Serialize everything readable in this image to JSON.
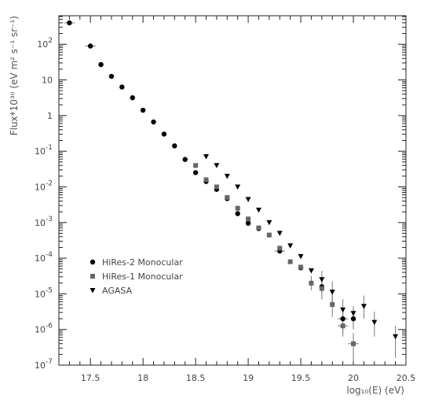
{
  "chart_data": {
    "type": "scatter",
    "title": "",
    "xlabel": "log₁₀(E)  (eV)",
    "ylabel": "Flux*10³⁰ (eV m² s⁻¹ sr⁻¹)",
    "xlim": [
      17.2,
      20.5
    ],
    "ylim_log10": [
      -7,
      2.8
    ],
    "y_scale": "log",
    "grid": false,
    "legend_position": "lower-left",
    "x_ticks": [
      17.5,
      18,
      18.5,
      19,
      19.5,
      20,
      20.5
    ],
    "x_tick_labels": [
      "17.5",
      "18",
      "18.5",
      "19",
      "19.5",
      "20",
      "20.5"
    ],
    "y_tick_exponents": [
      -7,
      -6,
      -5,
      -4,
      -3,
      -2,
      -1,
      0,
      1,
      2
    ],
    "y_tick_labels": [
      {
        "base": "10",
        "exp": "-7"
      },
      {
        "base": "10",
        "exp": "-6"
      },
      {
        "base": "10",
        "exp": "-5"
      },
      {
        "base": "10",
        "exp": "-4"
      },
      {
        "base": "10",
        "exp": "-3"
      },
      {
        "base": "10",
        "exp": "-2"
      },
      {
        "base": "10",
        "exp": "-1"
      },
      {
        "base": "1",
        "exp": ""
      },
      {
        "base": "10",
        "exp": ""
      },
      {
        "base": "10",
        "exp": "2"
      }
    ],
    "series": [
      {
        "name": "HiRes-2 Monocular",
        "marker": "circle",
        "color": "#000000",
        "points": [
          {
            "x": 17.3,
            "y": 2.6,
            "xerr": 0.05
          },
          {
            "x": 17.5,
            "y": 1.95,
            "xerr": 0.05
          },
          {
            "x": 17.6,
            "y": 1.43
          },
          {
            "x": 17.7,
            "y": 1.1
          },
          {
            "x": 17.8,
            "y": 0.8
          },
          {
            "x": 17.9,
            "y": 0.5
          },
          {
            "x": 18.0,
            "y": 0.15
          },
          {
            "x": 18.1,
            "y": -0.18
          },
          {
            "x": 18.2,
            "y": -0.52
          },
          {
            "x": 18.3,
            "y": -0.85
          },
          {
            "x": 18.4,
            "y": -1.23
          },
          {
            "x": 18.5,
            "y": -1.6
          },
          {
            "x": 18.6,
            "y": -1.85
          },
          {
            "x": 18.7,
            "y": -2.07
          },
          {
            "x": 18.8,
            "y": -2.33
          },
          {
            "x": 18.9,
            "y": -2.75
          },
          {
            "x": 19.0,
            "y": -3.02
          },
          {
            "x": 19.1,
            "y": -3.17
          },
          {
            "x": 19.3,
            "y": -3.8,
            "xerr": 0.05
          },
          {
            "x": 19.5,
            "y": -4.27
          },
          {
            "x": 19.7,
            "y": -4.8,
            "yerr": [
              0.2,
              0.2
            ]
          },
          {
            "x": 19.9,
            "y": -5.7,
            "yerr": [
              0.4,
              0.3
            ],
            "xerr": 0.05
          },
          {
            "x": 20.0,
            "y": -5.7,
            "yerr": [
              0.3,
              0.3
            ]
          }
        ]
      },
      {
        "name": "HiRes-1 Monocular",
        "marker": "square",
        "color": "#666666",
        "points": [
          {
            "x": 18.5,
            "y": -1.4
          },
          {
            "x": 18.6,
            "y": -1.8
          },
          {
            "x": 18.7,
            "y": -2.0
          },
          {
            "x": 18.8,
            "y": -2.3
          },
          {
            "x": 18.9,
            "y": -2.6
          },
          {
            "x": 19.0,
            "y": -2.9
          },
          {
            "x": 19.1,
            "y": -3.15
          },
          {
            "x": 19.2,
            "y": -3.35
          },
          {
            "x": 19.3,
            "y": -3.72
          },
          {
            "x": 19.4,
            "y": -4.1
          },
          {
            "x": 19.5,
            "y": -4.25
          },
          {
            "x": 19.6,
            "y": -4.7,
            "yerr": [
              0.2,
              0.2
            ]
          },
          {
            "x": 19.7,
            "y": -4.85,
            "yerr": [
              0.3,
              0.3
            ]
          },
          {
            "x": 19.8,
            "y": -5.3,
            "yerr": [
              0.35,
              0.35
            ]
          },
          {
            "x": 19.9,
            "y": -5.9,
            "yerr": [
              0.3,
              0.3
            ],
            "xerr": 0.05
          },
          {
            "x": 20.0,
            "y": -6.4,
            "yerr": [
              0.5,
              0.3
            ],
            "xerr": 0.05
          }
        ]
      },
      {
        "name": "AGASA",
        "marker": "triangle-down",
        "color": "#000000",
        "points": [
          {
            "x": 18.6,
            "y": -1.15
          },
          {
            "x": 18.7,
            "y": -1.4
          },
          {
            "x": 18.8,
            "y": -1.7
          },
          {
            "x": 18.9,
            "y": -2.0
          },
          {
            "x": 19.0,
            "y": -2.35
          },
          {
            "x": 19.1,
            "y": -2.65
          },
          {
            "x": 19.2,
            "y": -3.0
          },
          {
            "x": 19.3,
            "y": -3.3
          },
          {
            "x": 19.4,
            "y": -3.65
          },
          {
            "x": 19.5,
            "y": -3.95
          },
          {
            "x": 19.6,
            "y": -4.35
          },
          {
            "x": 19.7,
            "y": -4.6,
            "yerr": [
              0.2,
              0.25
            ]
          },
          {
            "x": 19.8,
            "y": -4.95,
            "yerr": [
              0.3,
              0.3
            ]
          },
          {
            "x": 19.9,
            "y": -5.45,
            "yerr": [
              0.3,
              0.3
            ]
          },
          {
            "x": 20.0,
            "y": -5.55,
            "yerr": [
              0.4,
              0.2
            ]
          },
          {
            "x": 20.1,
            "y": -5.35,
            "yerr": [
              0.35,
              0.3
            ]
          },
          {
            "x": 20.2,
            "y": -5.8,
            "yerr": [
              0.4,
              0.3
            ]
          },
          {
            "x": 20.4,
            "y": -6.2,
            "yerr": [
              0.6,
              0.3
            ]
          }
        ]
      }
    ]
  }
}
